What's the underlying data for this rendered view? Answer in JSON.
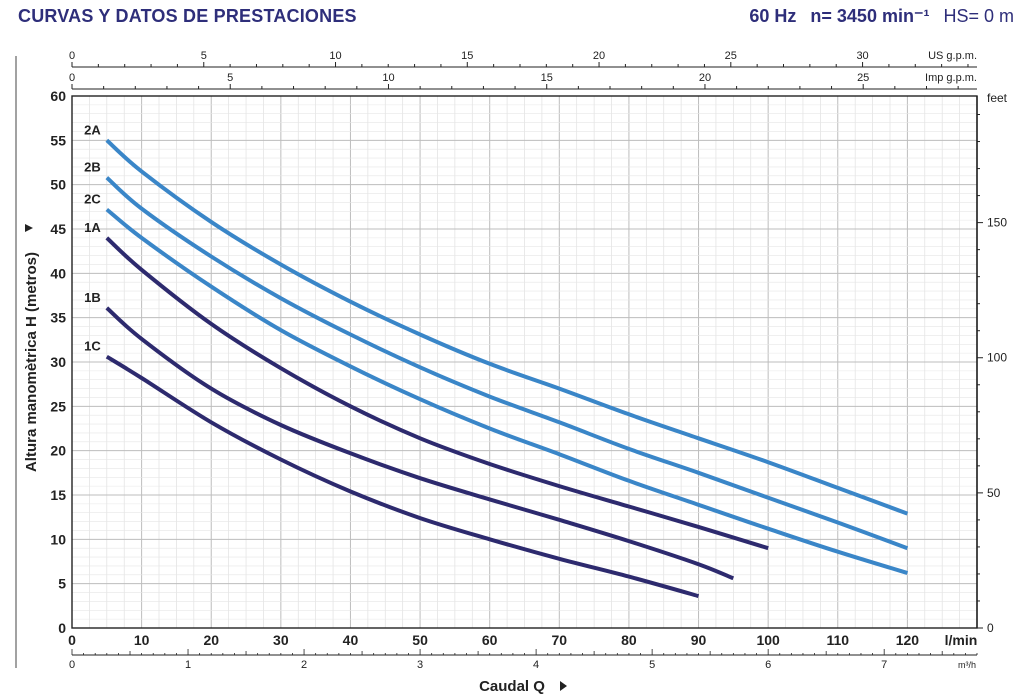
{
  "header": {
    "title": "CURVAS Y DATOS DE PRESTACIONES",
    "frequency": "60 Hz",
    "speed": "n= 3450 min⁻¹",
    "hs": "HS= 0 m"
  },
  "colors": {
    "title": "#2e2e7a",
    "series_A_family": "#3a86c8",
    "series_1_family": "#2d2a6e",
    "grid": "#cfcfcf"
  },
  "chart_data": {
    "type": "line",
    "ylabel": "Altura manomètrica H (metros)",
    "xlabel": "Caudal Q",
    "x_unit": "l/min",
    "x_range": [
      0,
      130
    ],
    "y_range": [
      0,
      60
    ],
    "grid": true,
    "x_ticks": [
      "0",
      "10",
      "20",
      "30",
      "40",
      "50",
      "60",
      "70",
      "80",
      "90",
      "100",
      "110",
      "120"
    ],
    "y_ticks": [
      "0",
      "5",
      "10",
      "15",
      "20",
      "25",
      "30",
      "35",
      "40",
      "45",
      "50",
      "55",
      "60"
    ],
    "right_axis": {
      "label": "feet",
      "ticks": [
        "0",
        "50",
        "100",
        "150"
      ]
    },
    "top_axis_us": {
      "label": "US g.p.m.",
      "ticks": [
        "0",
        "5",
        "10",
        "15",
        "20",
        "25",
        "30"
      ]
    },
    "top_axis_imp": {
      "label": "Imp g.p.m.",
      "ticks": [
        "0",
        "5",
        "10",
        "15",
        "20",
        "25"
      ]
    },
    "bottom_axis_m3h": {
      "label": "m³/h",
      "ticks": [
        "0",
        "1",
        "2",
        "3",
        "4",
        "5",
        "6",
        "7"
      ]
    },
    "series": [
      {
        "name": "2A",
        "x": [
          5,
          10,
          20,
          30,
          40,
          50,
          60,
          70,
          80,
          90,
          100,
          110,
          120
        ],
        "y": [
          55.0,
          51.5,
          45.8,
          41.0,
          36.8,
          33.1,
          29.8,
          27.0,
          24.1,
          21.4,
          18.7,
          15.8,
          12.9
        ]
      },
      {
        "name": "2B",
        "x": [
          5,
          10,
          20,
          30,
          40,
          50,
          60,
          70,
          80,
          90,
          100,
          110,
          120
        ],
        "y": [
          50.8,
          47.3,
          41.9,
          37.2,
          33.1,
          29.4,
          26.1,
          23.2,
          20.2,
          17.5,
          14.7,
          11.9,
          9.0
        ]
      },
      {
        "name": "2C",
        "x": [
          5,
          10,
          20,
          30,
          40,
          50,
          60,
          70,
          80,
          90,
          100,
          110,
          120
        ],
        "y": [
          47.2,
          44.0,
          38.5,
          33.6,
          29.5,
          25.8,
          22.5,
          19.6,
          16.6,
          13.9,
          11.2,
          8.6,
          6.2
        ]
      },
      {
        "name": "1A",
        "x": [
          5,
          10,
          20,
          30,
          40,
          50,
          60,
          70,
          80,
          90,
          100
        ],
        "y": [
          44.0,
          40.4,
          34.3,
          29.3,
          25.0,
          21.4,
          18.5,
          16.0,
          13.7,
          11.4,
          9.0
        ]
      },
      {
        "name": "1B",
        "x": [
          5,
          10,
          20,
          30,
          40,
          50,
          60,
          70,
          80,
          90,
          95
        ],
        "y": [
          36.1,
          32.6,
          27.0,
          22.9,
          19.7,
          16.9,
          14.5,
          12.2,
          9.8,
          7.2,
          5.6
        ]
      },
      {
        "name": "1C",
        "x": [
          5,
          10,
          20,
          30,
          40,
          50,
          60,
          70,
          80,
          90
        ],
        "y": [
          30.6,
          28.2,
          23.2,
          19.0,
          15.4,
          12.4,
          10.0,
          7.8,
          5.8,
          3.6
        ]
      }
    ]
  }
}
